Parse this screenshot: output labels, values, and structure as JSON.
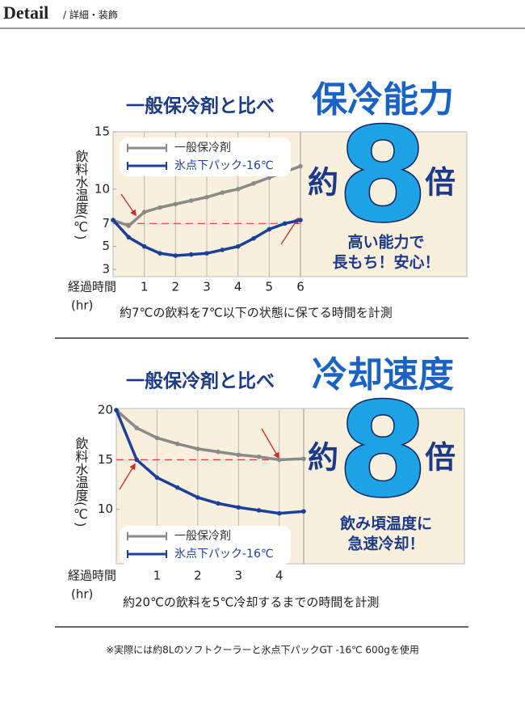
{
  "header": {
    "title": "Detail",
    "subtitle": "/ 詳細・装飾"
  },
  "chart_data": [
    {
      "type": "line",
      "title": "一般保冷剤と比べ",
      "headline": "保冷能力",
      "ylabel": "飲料水温度(℃)",
      "xlabel": [
        "経過時間",
        "(hr)"
      ],
      "x": [
        0,
        0.5,
        1,
        1.5,
        2,
        2.5,
        3,
        3.5,
        4,
        4.5,
        5,
        5.5,
        6
      ],
      "series": [
        {
          "name": "一般保冷剤",
          "color": "#8a8a8a",
          "values": [
            7.3,
            6.8,
            8,
            8.4,
            8.7,
            9,
            9.3,
            9.7,
            10,
            10.5,
            11,
            11.5,
            12
          ]
        },
        {
          "name": "氷点下パック-16℃",
          "color": "#1c3f99",
          "values": [
            7.3,
            5.8,
            5,
            4.4,
            4.2,
            4.3,
            4.4,
            4.7,
            5,
            5.7,
            6.5,
            7,
            7.3
          ]
        }
      ],
      "xlim": [
        0,
        6
      ],
      "xticks": [
        1,
        2,
        3,
        4,
        5,
        6
      ],
      "ylim": [
        3,
        15
      ],
      "yticks": [
        15,
        10,
        7,
        5,
        3
      ],
      "reference_y": 7,
      "reference_color": "#e03a3a",
      "legend": "upper left",
      "grid": true,
      "highlight": [
        "約",
        "8",
        "倍"
      ],
      "note": [
        "高い能力で",
        "長もち！安心！"
      ],
      "caption": "約7℃の飲料を7℃以下の状態に保てる時間を計測"
    },
    {
      "type": "line",
      "title": "一般保冷剤と比べ",
      "headline": "冷却速度",
      "ylabel": "飲料水温度(℃)",
      "xlabel": [
        "経過時間",
        "(hr)"
      ],
      "x": [
        0,
        0.5,
        1,
        1.5,
        2,
        2.5,
        3,
        3.5,
        4,
        4.6
      ],
      "series": [
        {
          "name": "一般保冷剤",
          "color": "#8a8a8a",
          "values": [
            20,
            18.2,
            17.2,
            16.6,
            16.1,
            15.8,
            15.5,
            15.3,
            15,
            15.1
          ]
        },
        {
          "name": "氷点下パック-16℃",
          "color": "#1c3f99",
          "values": [
            20,
            15,
            13.2,
            12.2,
            11.2,
            10.6,
            10.2,
            9.9,
            9.6,
            9.8
          ]
        }
      ],
      "xlim": [
        0,
        4.6
      ],
      "xticks": [
        1,
        2,
        3,
        4
      ],
      "ylim": [
        4.6,
        20
      ],
      "yticks": [
        20,
        15,
        10
      ],
      "reference_y": 15,
      "reference_color": "#e03a3a",
      "legend": "lower left",
      "grid": true,
      "highlight": [
        "約",
        "8",
        "倍"
      ],
      "note": [
        "飲み頃温度に",
        "急速冷却！"
      ],
      "caption": "約20℃の飲料を5℃冷却するまでの時間を計測"
    }
  ],
  "footnote": "※実際には約8Lのソフトクーラーと氷点下パックGT -16℃ 600gを使用"
}
